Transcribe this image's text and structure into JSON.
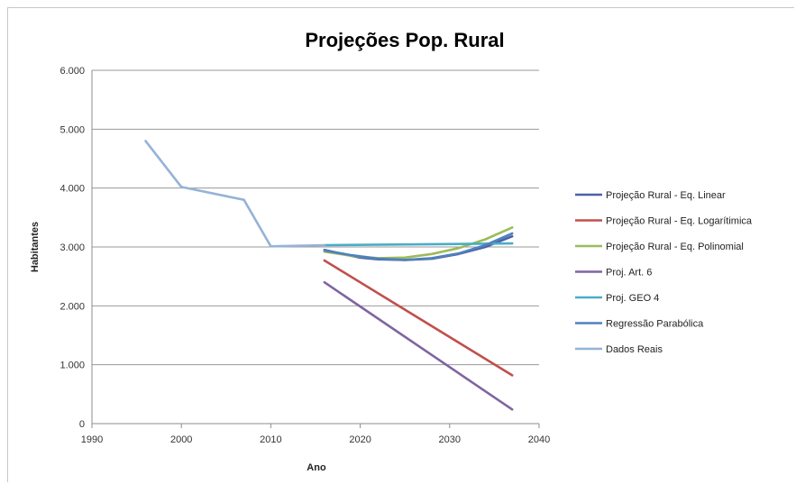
{
  "chart_data": {
    "type": "line",
    "title": "Projeções Pop. Rural",
    "xlabel": "Ano",
    "ylabel": "Habitantes",
    "xlim": [
      1990,
      2040
    ],
    "ylim": [
      0,
      6000
    ],
    "xticks": [
      "1990",
      "2000",
      "2010",
      "2020",
      "2030",
      "2040"
    ],
    "yticks": [
      "0",
      "1.000",
      "2.000",
      "3.000",
      "4.000",
      "5.000",
      "6.000"
    ],
    "grid": "horizontal",
    "legend_position": "right",
    "series": [
      {
        "name": "Projeção Rural - Eq. Linear",
        "color": "#4a60a8",
        "x": [
          2016,
          2018,
          2020,
          2022,
          2025,
          2028,
          2031,
          2034,
          2037
        ],
        "y": [
          2950,
          2880,
          2820,
          2790,
          2780,
          2800,
          2880,
          3000,
          3180
        ]
      },
      {
        "name": "Projeção Rural - Eq. Logarítimica",
        "color": "#c0504d",
        "x": [
          2016,
          2037
        ],
        "y": [
          2770,
          820
        ]
      },
      {
        "name": "Projeção Rural - Eq. Polinomial",
        "color": "#9bbb59",
        "x": [
          2016,
          2019,
          2022,
          2025,
          2028,
          2031,
          2034,
          2037
        ],
        "y": [
          2920,
          2850,
          2810,
          2820,
          2880,
          2980,
          3130,
          3330
        ]
      },
      {
        "name": "Proj. Art. 6",
        "color": "#8064a2",
        "x": [
          2016,
          2037
        ],
        "y": [
          2400,
          240
        ]
      },
      {
        "name": "Proj. GEO 4",
        "color": "#4bacc6",
        "x": [
          2016,
          2037
        ],
        "y": [
          3030,
          3060
        ]
      },
      {
        "name": "Regressão Parabólica",
        "color": "#4f81bd",
        "x": [
          2016,
          2019,
          2022,
          2025,
          2028,
          2031,
          2034,
          2037
        ],
        "y": [
          2940,
          2860,
          2800,
          2780,
          2810,
          2890,
          3030,
          3230
        ]
      },
      {
        "name": "Dados Reais",
        "color": "#95b3d7",
        "x": [
          1996,
          2000,
          2007,
          2010,
          2016
        ],
        "y": [
          4800,
          4020,
          3800,
          3010,
          3030
        ]
      }
    ]
  }
}
